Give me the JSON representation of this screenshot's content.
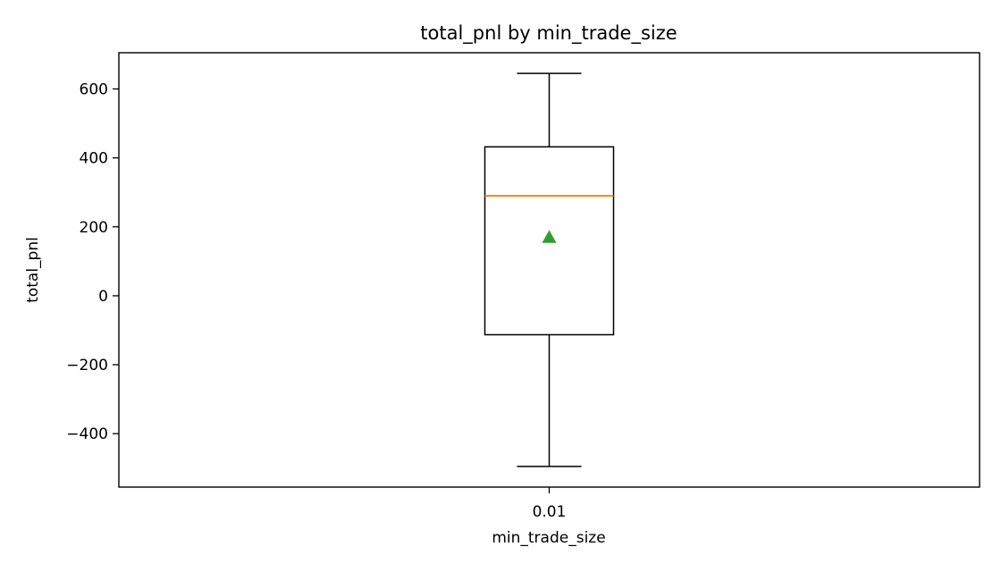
{
  "chart_data": {
    "type": "box",
    "title": "total_pnl by min_trade_size",
    "xlabel": "min_trade_size",
    "ylabel": "total_pnl",
    "categories": [
      "0.01"
    ],
    "boxes": [
      {
        "category": "0.01",
        "whisker_low": -495,
        "q1": -113,
        "median": 290,
        "q3": 432,
        "whisker_high": 645,
        "mean": 170
      }
    ],
    "yticks": [
      -400,
      -200,
      0,
      200,
      400,
      600
    ],
    "ytick_labels": [
      "−400",
      "−200",
      "0",
      "200",
      "400",
      "600"
    ],
    "ylim": [
      -555,
      705
    ],
    "grid": false,
    "show_mean": true,
    "colors": {
      "box": "#000000",
      "median": "#ff7f0e",
      "mean": "#2ca02c",
      "axes": "#000000"
    }
  }
}
